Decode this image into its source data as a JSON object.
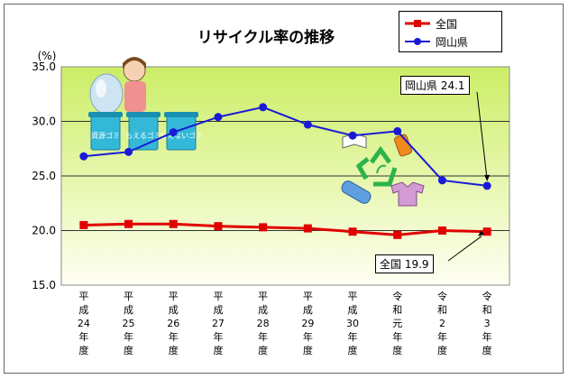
{
  "chart_data": {
    "type": "line",
    "title": "リサイクル率の推移",
    "ylabel": "(%)",
    "ylim": [
      15.0,
      35.0
    ],
    "yticks": [
      "15.0",
      "20.0",
      "25.0",
      "30.0",
      "35.0"
    ],
    "categories": [
      [
        "平",
        "成",
        "24",
        "年",
        "度"
      ],
      [
        "平",
        "成",
        "25",
        "年",
        "度"
      ],
      [
        "平",
        "成",
        "26",
        "年",
        "度"
      ],
      [
        "平",
        "成",
        "27",
        "年",
        "度"
      ],
      [
        "平",
        "成",
        "28",
        "年",
        "度"
      ],
      [
        "平",
        "成",
        "29",
        "年",
        "度"
      ],
      [
        "平",
        "成",
        "30",
        "年",
        "度"
      ],
      [
        "令",
        "和",
        "元",
        "年",
        "度"
      ],
      [
        "令",
        "和",
        "2",
        "年",
        "度"
      ],
      [
        "令",
        "和",
        "3",
        "年",
        "度"
      ]
    ],
    "series": [
      {
        "name": "全国",
        "color": "#e00000",
        "marker": "square",
        "values": [
          20.5,
          20.6,
          20.6,
          20.4,
          20.3,
          20.2,
          19.9,
          19.6,
          20.0,
          19.9
        ]
      },
      {
        "name": "岡山県",
        "color": "#1a1ad6",
        "marker": "circle",
        "values": [
          26.8,
          27.2,
          29.0,
          30.4,
          31.3,
          29.7,
          28.7,
          29.1,
          24.6,
          24.1
        ]
      }
    ],
    "annotations": [
      {
        "text": "岡山県 24.1",
        "series": "岡山県",
        "index": 9
      },
      {
        "text": "全国 19.9",
        "series": "全国",
        "index": 9
      }
    ],
    "grid": true,
    "legend": "top-right",
    "plot_background": [
      "#ccee66",
      "#fffff2"
    ]
  },
  "illustrations": {
    "bins": [
      "資源ゴミ",
      "もえるゴミ",
      "もえないゴミ"
    ]
  }
}
